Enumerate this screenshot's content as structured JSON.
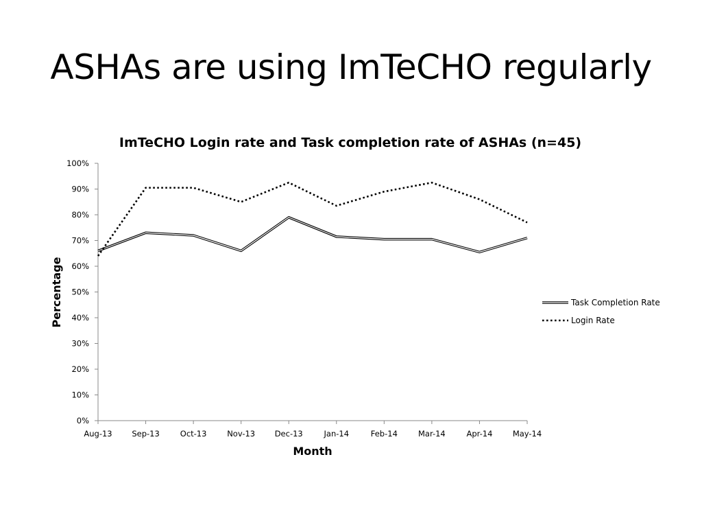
{
  "slide": {
    "title": "ASHAs are using ImTeCHO regularly"
  },
  "colors": {
    "background": "#ffffff",
    "line": "#000000",
    "axis": "#888888"
  },
  "chart_data": {
    "type": "line",
    "title": "ImTeCHO Login rate and Task completion rate of ASHAs (n=45)",
    "xlabel": "Month",
    "ylabel": "Percentage",
    "categories": [
      "Aug-13",
      "Sep-13",
      "Oct-13",
      "Nov-13",
      "Dec-13",
      "Jan-14",
      "Feb-14",
      "Mar-14",
      "Apr-14",
      "May-14"
    ],
    "y_ticks": [
      "0%",
      "10%",
      "20%",
      "30%",
      "40%",
      "50%",
      "60%",
      "70%",
      "80%",
      "90%",
      "100%"
    ],
    "ylim": [
      0,
      100
    ],
    "grid": false,
    "legend_position": "right",
    "series": [
      {
        "name": "Task Completion Rate",
        "style": "double-line",
        "values": [
          66,
          73,
          72,
          66,
          79,
          71.5,
          70.5,
          70.5,
          65.5,
          71
        ]
      },
      {
        "name": "Login Rate",
        "style": "dotted",
        "values": [
          64,
          90.5,
          90.5,
          85,
          92.5,
          83.5,
          89,
          92.5,
          86,
          77
        ]
      }
    ]
  }
}
